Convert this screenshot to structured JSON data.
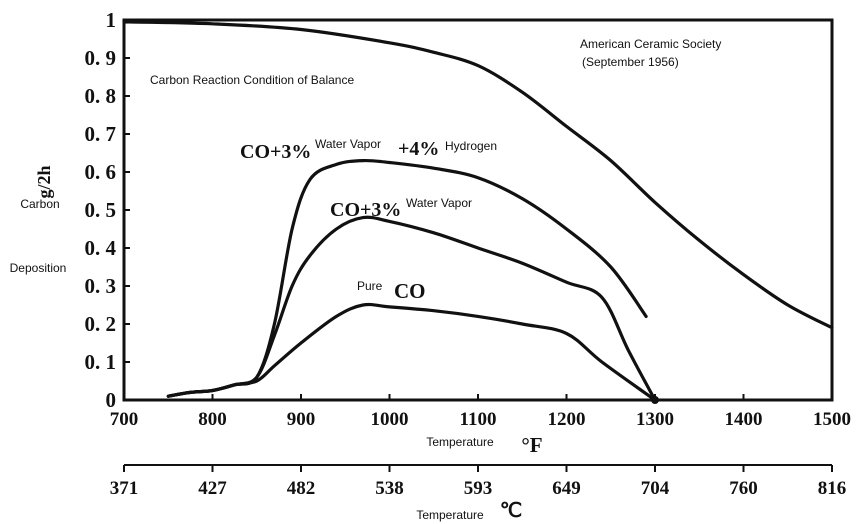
{
  "chart_data": {
    "type": "line",
    "xlabel": "Temperature",
    "xunit": "°F",
    "ylabel_unit": "g/2h",
    "ylabel_lines": [
      "Carbon",
      "Deposition"
    ],
    "xlim": [
      700,
      1500
    ],
    "ylim": [
      0,
      1
    ],
    "x_ticks": [
      700,
      800,
      900,
      1000,
      1100,
      1200,
      1300,
      1400,
      1500
    ],
    "y_ticks": [
      {
        "value": 0,
        "label": "0"
      },
      {
        "value": 0.1,
        "label": "0. 1"
      },
      {
        "value": 0.2,
        "label": "0. 2"
      },
      {
        "value": 0.3,
        "label": "0. 3"
      },
      {
        "value": 0.4,
        "label": "0. 4"
      },
      {
        "value": 0.5,
        "label": "0. 5"
      },
      {
        "value": 0.6,
        "label": "0. 6"
      },
      {
        "value": 0.7,
        "label": "0. 7"
      },
      {
        "value": 0.8,
        "label": "0. 8"
      },
      {
        "value": 0.9,
        "label": "0. 9"
      },
      {
        "value": 1,
        "label": "1"
      }
    ],
    "secondary_axis": {
      "label": "Temperature",
      "unit": "℃",
      "ticks": [
        {
          "f": 700,
          "label": "371"
        },
        {
          "f": 800,
          "label": "427"
        },
        {
          "f": 900,
          "label": "482"
        },
        {
          "f": 1000,
          "label": "538"
        },
        {
          "f": 1100,
          "label": "593"
        },
        {
          "f": 1200,
          "label": "649"
        },
        {
          "f": 1300,
          "label": "704"
        },
        {
          "f": 1400,
          "label": "760"
        },
        {
          "f": 1500,
          "label": "816"
        }
      ]
    },
    "series": [
      {
        "x": [
          700,
          800,
          900,
          1000,
          1050,
          1100,
          1150,
          1200,
          1250,
          1300,
          1350,
          1400,
          1450,
          1500
        ],
        "y": [
          0.995,
          0.99,
          0.975,
          0.94,
          0.915,
          0.88,
          0.81,
          0.72,
          0.63,
          0.52,
          0.42,
          0.33,
          0.25,
          0.19
        ]
      },
      {
        "x": [
          750,
          775,
          800,
          825,
          850,
          870,
          890,
          910,
          940,
          970,
          1000,
          1050,
          1100,
          1150,
          1200,
          1250,
          1290
        ],
        "y": [
          0.01,
          0.02,
          0.025,
          0.04,
          0.06,
          0.2,
          0.45,
          0.58,
          0.62,
          0.63,
          0.625,
          0.61,
          0.585,
          0.53,
          0.45,
          0.35,
          0.22
        ]
      },
      {
        "x": [
          750,
          775,
          800,
          825,
          850,
          870,
          890,
          910,
          940,
          970,
          1000,
          1050,
          1100,
          1150,
          1200,
          1240,
          1270,
          1300
        ],
        "y": [
          0.01,
          0.02,
          0.025,
          0.04,
          0.06,
          0.17,
          0.3,
          0.38,
          0.45,
          0.48,
          0.47,
          0.44,
          0.4,
          0.36,
          0.31,
          0.27,
          0.13,
          0.0
        ]
      },
      {
        "x": [
          750,
          775,
          800,
          825,
          850,
          870,
          900,
          940,
          970,
          1000,
          1050,
          1100,
          1150,
          1200,
          1240,
          1300
        ],
        "y": [
          0.01,
          0.02,
          0.025,
          0.04,
          0.05,
          0.09,
          0.15,
          0.22,
          0.25,
          0.245,
          0.235,
          0.22,
          0.2,
          0.175,
          0.1,
          0.0
        ]
      }
    ],
    "annotations": {
      "source_line1": "American Ceramic Society",
      "source_line2": "(September 1956)",
      "title_note": "Carbon Reaction Condition of Balance",
      "s1_co": "CO+3%",
      "s1_water": "Water Vapor",
      "s1_h": "+4%",
      "s1_hydrogen": "Hydrogen",
      "s2_co": "CO+3%",
      "s2_water": "Water Vapor",
      "s3_pure": "Pure",
      "s3_co": "CO"
    }
  }
}
